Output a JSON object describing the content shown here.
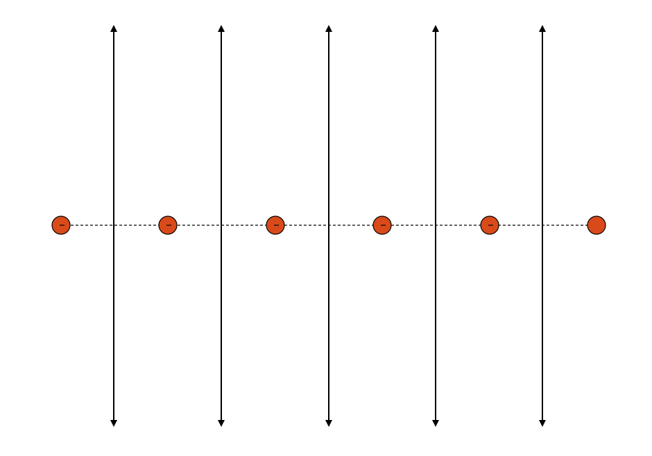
{
  "diagram": {
    "vertical_line_count": 5,
    "node_count": 6,
    "colors": {
      "background": "#ffffff",
      "line": "#000000",
      "dashed_line": "#000000",
      "node_fill": "#d94a1a",
      "node_stroke": "#000000"
    },
    "elements": {
      "vertical_arrows": "double-headed",
      "horizontal_connector": "dashed",
      "nodes": "filled circles"
    }
  }
}
